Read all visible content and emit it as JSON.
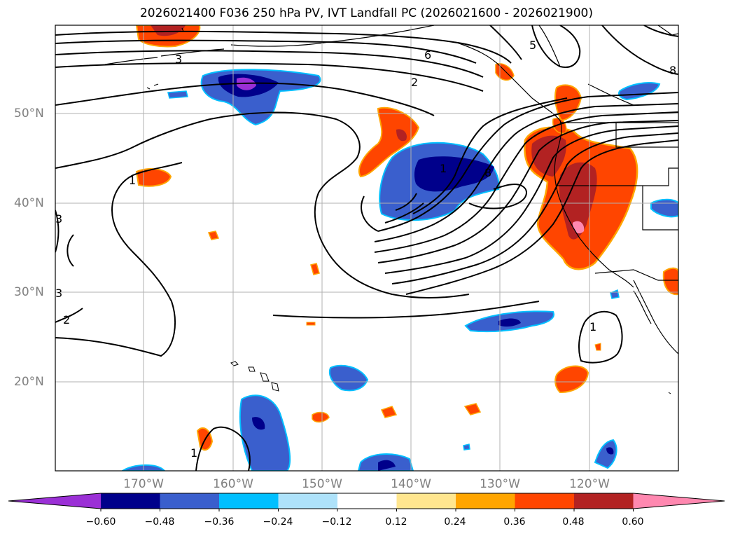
{
  "title": "2026021400 F036 250 hPa PV, IVT Landfall PC (2026021600 - 2026021900)",
  "lat_labels": [
    "50°N",
    "40°N",
    "30°N",
    "20°N"
  ],
  "lon_labels": [
    "170°W",
    "160°W",
    "150°W",
    "140°W",
    "130°W",
    "120°W"
  ],
  "contour_labels": [
    "3",
    "6",
    "2",
    "5",
    "8",
    "1",
    "3",
    "2",
    "3",
    "1",
    "8",
    "1",
    "1"
  ],
  "colorbar": {
    "ticks": [
      "−0.60",
      "−0.48",
      "−0.36",
      "−0.24",
      "−0.12",
      "0.12",
      "0.24",
      "0.36",
      "0.48",
      "0.60"
    ],
    "colors": [
      "#9b30d6",
      "#00008b",
      "#3a5fcd",
      "#00bfff",
      "#aee2fa",
      "#ffffff",
      "#ffe68f",
      "#ffa500",
      "#ff4500",
      "#b22222",
      "#ff88b0"
    ]
  },
  "colors": {
    "grid": "#b0b0b0",
    "tick_label": "#808080",
    "contour": "#000000"
  }
}
